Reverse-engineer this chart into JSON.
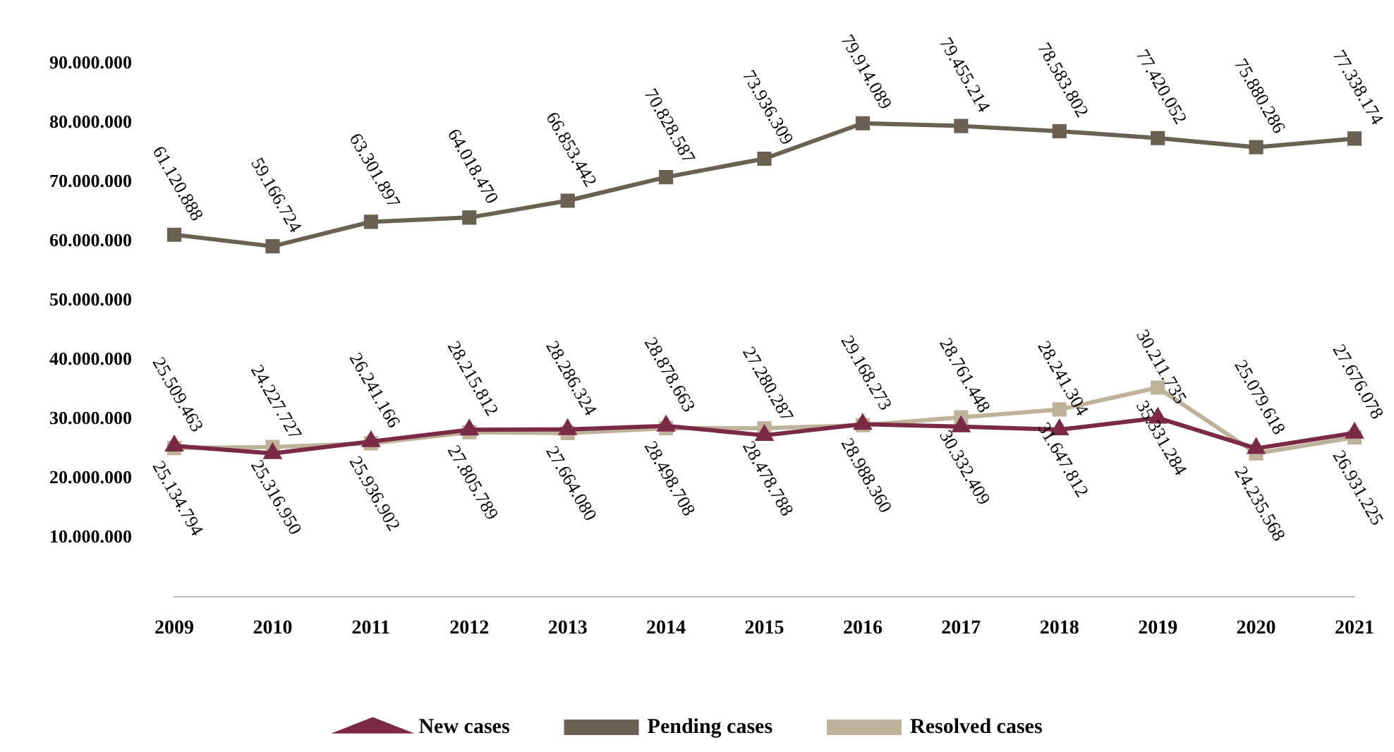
{
  "chart_data": {
    "type": "line",
    "categories": [
      "2009",
      "2010",
      "2011",
      "2012",
      "2013",
      "2014",
      "2015",
      "2016",
      "2017",
      "2018",
      "2019",
      "2020",
      "2021"
    ],
    "series": [
      {
        "name": "New cases",
        "color": "#7b2a45",
        "marker": "triangle",
        "values": [
          25509463,
          24227727,
          26241166,
          28215812,
          28286324,
          28878663,
          27280287,
          29168273,
          28761448,
          28241304,
          30211735,
          25079618,
          27676078
        ],
        "value_labels": [
          "25.509.463",
          "24.227.727",
          "26.241.166",
          "28.215.812",
          "28.286.324",
          "28.878.663",
          "27.280.287",
          "29.168.273",
          "28.761.448",
          "28.241.304",
          "30.211.735",
          "25.079.618",
          "27.676.078"
        ]
      },
      {
        "name": "Pending cases",
        "color": "#6b6152",
        "marker": "square",
        "values": [
          61120888,
          59166724,
          63301897,
          64018470,
          66853442,
          70828587,
          73936309,
          79914089,
          79455214,
          78583802,
          77420052,
          75880286,
          77338174
        ],
        "value_labels": [
          "61.120.888",
          "59.166.724",
          "63.301.897",
          "64.018.470",
          "66.853.442",
          "70.828.587",
          "73.936.309",
          "79.914.089",
          "79.455.214",
          "78.583.802",
          "77.420.052",
          "75.880.286",
          "77.338.174"
        ]
      },
      {
        "name": "Resolved cases",
        "color": "#bfb29b",
        "marker": "square",
        "values": [
          25134794,
          25316950,
          25936902,
          27805789,
          27664080,
          28498708,
          28478788,
          28988360,
          30332409,
          31647812,
          35331284,
          24235568,
          26931225
        ],
        "value_labels": [
          "25.134.794",
          "25.316.950",
          "25.936.902",
          "27.805.789",
          "27.664.080",
          "28.498.708",
          "28.478.788",
          "28.988.360",
          "30.332.409",
          "31.647.812",
          "35.331.284",
          "24.235.568",
          "26.931.225"
        ]
      }
    ],
    "ylim": [
      0,
      90000000
    ],
    "yticks": [
      {
        "value": 0,
        "label": null
      },
      {
        "value": 10000000,
        "label": "10.000.000"
      },
      {
        "value": 20000000,
        "label": "20.000.000"
      },
      {
        "value": 30000000,
        "label": "30.000.000"
      },
      {
        "value": 40000000,
        "label": "40.000.000"
      },
      {
        "value": 50000000,
        "label": "50.000.000"
      },
      {
        "value": 60000000,
        "label": "60.000.000"
      },
      {
        "value": 70000000,
        "label": "70.000.000"
      },
      {
        "value": 80000000,
        "label": "80.000.000"
      },
      {
        "value": 90000000,
        "label": "90.000.000"
      }
    ],
    "grid": false,
    "legend": "bottom",
    "line_style": "solid"
  }
}
